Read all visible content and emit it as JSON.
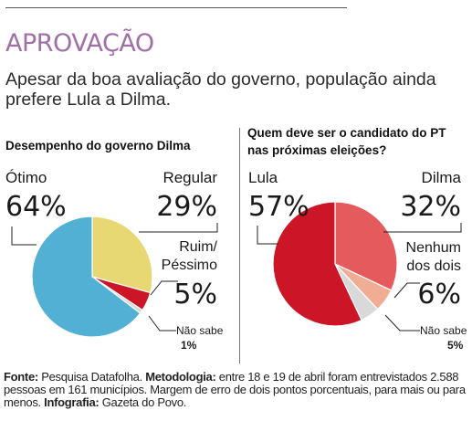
{
  "headline": "APROVAÇÃO",
  "subhead": "Apesar da boa avaliação do governo, população ainda prefere Lula a Dilma.",
  "footer": {
    "source_label": "Fonte:",
    "source_text": " Pesquisa Datafolha.",
    "method_label": " Metodologia:",
    "method_text": " entre 18 e 19 de abril foram entrevistados 2.588 pessoas em 161 municípios. Margem de erro de dois pontos porcentuais, para mais ou para menos.",
    "info_label": " Infografia:",
    "info_text": " Gazeta do Povo."
  },
  "chart_data": [
    {
      "type": "pie",
      "title": "Desempenho do governo Dilma",
      "slices": [
        {
          "label": "Ótimo",
          "value": 64,
          "display": "64%",
          "color": "#52b0d5"
        },
        {
          "label": "Regular",
          "value": 29,
          "display": "29%",
          "color": "#e8d874"
        },
        {
          "label": "Ruim/ Péssimo",
          "value": 5,
          "display": "5%",
          "color": "#cc1526"
        },
        {
          "label": "Não sabe",
          "value": 1,
          "display": "1%",
          "color": "#d7d7d7"
        }
      ]
    },
    {
      "type": "pie",
      "title": "Quem deve ser o candidato do PT nas próximas eleições?",
      "slices": [
        {
          "label": "Lula",
          "value": 57,
          "display": "57%",
          "color": "#cc1526"
        },
        {
          "label": "Dilma",
          "value": 32,
          "display": "32%",
          "color": "#e55a5c"
        },
        {
          "label": "Nenhum dos dois",
          "value": 6,
          "display": "6%",
          "color": "#f0ad93"
        },
        {
          "label": "Não sabe",
          "value": 5,
          "display": "5%",
          "color": "#d9d9d9"
        }
      ]
    }
  ]
}
